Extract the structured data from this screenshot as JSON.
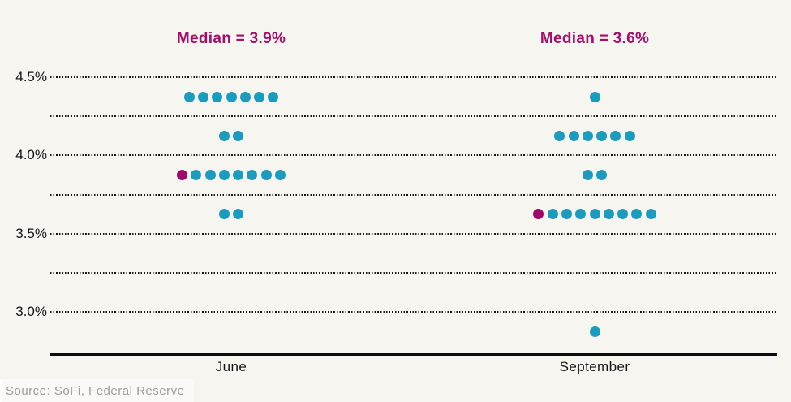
{
  "source_caption": "Source: SoFi, Federal Reserve",
  "colors": {
    "background": "#f7f5f0",
    "dot_teal": "#1b9bbd",
    "dot_median_magenta": "#a00768",
    "median_title_magenta": "#a50d68",
    "axis_black": "#0d0d0d",
    "tick_text": "#141414",
    "source_gray": "#9d9d99"
  },
  "chart_data": {
    "type": "scatter",
    "subtype": "fed-dot-plot",
    "categories": [
      "June",
      "September"
    ],
    "ylim": [
      2.725,
      4.625
    ],
    "grid": "dotted-horizontal",
    "gridline_values": [
      4.5,
      4.25,
      4.0,
      3.75,
      3.5,
      3.25,
      3.0
    ],
    "yticks": [
      {
        "label": "4.5%",
        "value": 4.5
      },
      {
        "label": "4.0%",
        "value": 4.0
      },
      {
        "label": "3.5%",
        "value": 3.5
      },
      {
        "label": "3.0%",
        "value": 3.0
      }
    ],
    "series": [
      {
        "category": "June",
        "median_label": "Median = 3.9%",
        "median_value": 3.9,
        "rows": [
          {
            "y": 4.375,
            "count": 7,
            "median_first": false
          },
          {
            "y": 4.125,
            "count": 2,
            "median_first": false
          },
          {
            "y": 3.875,
            "count": 8,
            "median_first": true
          },
          {
            "y": 3.625,
            "count": 2,
            "median_first": false
          }
        ]
      },
      {
        "category": "September",
        "median_label": "Median = 3.6%",
        "median_value": 3.6,
        "rows": [
          {
            "y": 4.375,
            "count": 1,
            "median_first": false
          },
          {
            "y": 4.125,
            "count": 6,
            "median_first": false
          },
          {
            "y": 3.875,
            "count": 2,
            "median_first": false
          },
          {
            "y": 3.625,
            "count": 9,
            "median_first": true
          },
          {
            "y": 2.875,
            "count": 1,
            "median_first": false
          }
        ]
      }
    ]
  }
}
